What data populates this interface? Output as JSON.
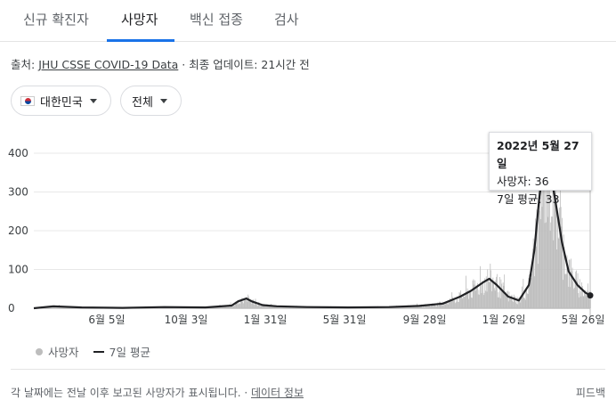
{
  "tabs": [
    {
      "label": "신규 확진자",
      "active": false
    },
    {
      "label": "사망자",
      "active": true
    },
    {
      "label": "백신 접종",
      "active": false
    },
    {
      "label": "검사",
      "active": false
    }
  ],
  "source": {
    "prefix": "출처: ",
    "link": "JHU CSSE COVID-19 Data",
    "update": " · 최종 업데이트: 21시간 전"
  },
  "filters": {
    "country": "대한민국",
    "range": "전체"
  },
  "tooltip": {
    "date": "2022년 5월 27일",
    "deaths": "사망자: 36",
    "avg": "7일 평균: 33"
  },
  "legend": {
    "bars": "사망자",
    "line": "7일 평균"
  },
  "footer": {
    "note": "각 날짜에는 전날 이후 보고된 사망자가 표시됩니다. · ",
    "link": "데이터 정보",
    "feedback": "피드백"
  },
  "colors": {
    "accent": "#1a73e8",
    "bar": "#bdbdbd",
    "line": "#202124"
  },
  "chart_data": {
    "type": "bar",
    "ylim": [
      0,
      400
    ],
    "yticks": [
      0,
      100,
      200,
      300,
      400
    ],
    "xticks": [
      "6월 5일",
      "10월 3일",
      "1월 31일",
      "5월 31일",
      "9월 28일",
      "1월 26일",
      "5월 26일"
    ],
    "series": [
      {
        "name": "7일 평균",
        "type": "line",
        "points": [
          [
            "2020-02-20",
            0
          ],
          [
            "2020-03-20",
            5
          ],
          [
            "2020-05-01",
            2
          ],
          [
            "2020-07-01",
            1
          ],
          [
            "2020-09-01",
            3
          ],
          [
            "2020-11-01",
            2
          ],
          [
            "2020-12-10",
            7
          ],
          [
            "2020-12-20",
            18
          ],
          [
            "2021-01-01",
            25
          ],
          [
            "2021-01-10",
            17
          ],
          [
            "2021-01-25",
            8
          ],
          [
            "2021-02-15",
            5
          ],
          [
            "2021-04-01",
            3
          ],
          [
            "2021-06-01",
            2
          ],
          [
            "2021-08-01",
            3
          ],
          [
            "2021-09-15",
            6
          ],
          [
            "2021-10-20",
            12
          ],
          [
            "2021-11-15",
            30
          ],
          [
            "2021-12-01",
            45
          ],
          [
            "2021-12-20",
            68
          ],
          [
            "2021-12-28",
            76
          ],
          [
            "2022-01-08",
            60
          ],
          [
            "2022-01-25",
            30
          ],
          [
            "2022-02-10",
            20
          ],
          [
            "2022-02-25",
            60
          ],
          [
            "2022-03-05",
            150
          ],
          [
            "2022-03-12",
            280
          ],
          [
            "2022-03-18",
            360
          ],
          [
            "2022-03-22",
            390
          ],
          [
            "2022-03-28",
            360
          ],
          [
            "2022-04-05",
            280
          ],
          [
            "2022-04-15",
            170
          ],
          [
            "2022-04-25",
            95
          ],
          [
            "2022-05-08",
            60
          ],
          [
            "2022-05-20",
            40
          ],
          [
            "2022-05-27",
            33
          ]
        ]
      },
      {
        "name": "사망자",
        "type": "bar",
        "note": "daily deaths shown as grey bars; approx. follows the 7-day average with peaks near 400 in March 2022; last value 36 on 2022-05-27"
      }
    ],
    "last_point": {
      "date": "2022-05-27",
      "deaths": 36,
      "avg": 33
    }
  }
}
